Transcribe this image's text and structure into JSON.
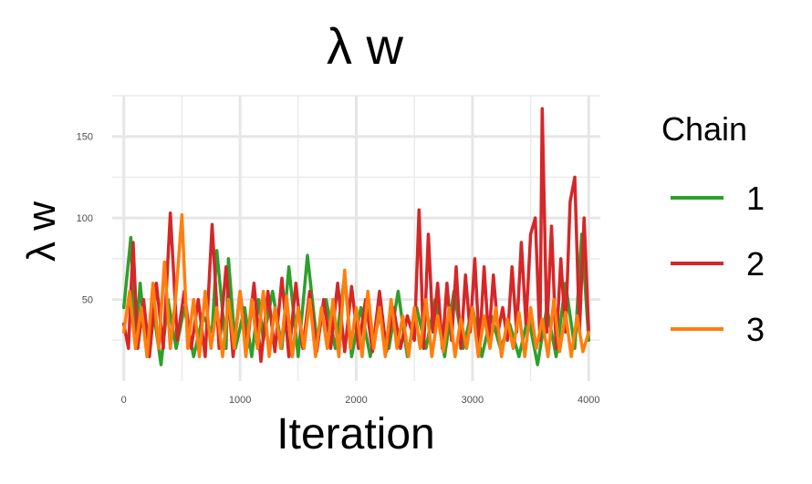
{
  "chart_data": {
    "type": "line",
    "title": "λ w",
    "xlabel": "Iteration",
    "ylabel": "λ w",
    "xlim": [
      -100,
      4100
    ],
    "ylim": [
      0,
      175
    ],
    "xticks": [
      0,
      1000,
      2000,
      3000,
      4000
    ],
    "xtick_labels": [
      "0",
      "1000",
      "2000",
      "3000",
      "4000"
    ],
    "yticks": [
      50,
      100,
      150
    ],
    "ytick_labels": [
      "50",
      "100",
      "150"
    ],
    "grid": true,
    "legend": {
      "title": "Chain",
      "position": "right",
      "entries": [
        "1",
        "2",
        "3"
      ]
    },
    "series": [
      {
        "name": "1",
        "color": "#2ca02c",
        "x": [
          0,
          60,
          100,
          140,
          200,
          260,
          320,
          380,
          450,
          520,
          600,
          680,
          760,
          800,
          880,
          900,
          960,
          1040,
          1100,
          1160,
          1200,
          1280,
          1360,
          1420,
          1500,
          1580,
          1660,
          1740,
          1820,
          1900,
          1960,
          2040,
          2120,
          2200,
          2280,
          2360,
          2440,
          2520,
          2600,
          2680,
          2760,
          2840,
          2920,
          3000,
          3080,
          3160,
          3240,
          3320,
          3400,
          3480,
          3560,
          3640,
          3720,
          3800,
          3880,
          3940,
          4000
        ],
        "y": [
          45,
          88,
          20,
          60,
          15,
          40,
          10,
          50,
          20,
          45,
          15,
          40,
          30,
          80,
          20,
          75,
          20,
          45,
          15,
          50,
          25,
          55,
          20,
          70,
          15,
          77,
          25,
          50,
          20,
          65,
          15,
          45,
          15,
          40,
          20,
          55,
          15,
          45,
          20,
          50,
          15,
          55,
          20,
          45,
          15,
          40,
          20,
          35,
          15,
          40,
          10,
          45,
          15,
          60,
          20,
          90,
          25
        ]
      },
      {
        "name": "2",
        "color": "#d62728",
        "x": [
          0,
          40,
          80,
          120,
          170,
          220,
          280,
          340,
          400,
          460,
          520,
          580,
          640,
          700,
          760,
          820,
          880,
          940,
          1000,
          1060,
          1120,
          1180,
          1240,
          1300,
          1360,
          1420,
          1480,
          1540,
          1600,
          1660,
          1720,
          1780,
          1840,
          1900,
          1960,
          2020,
          2080,
          2140,
          2200,
          2260,
          2320,
          2380,
          2440,
          2500,
          2540,
          2580,
          2620,
          2660,
          2700,
          2740,
          2780,
          2820,
          2860,
          2900,
          2940,
          2980,
          3020,
          3060,
          3100,
          3140,
          3180,
          3220,
          3260,
          3300,
          3340,
          3380,
          3420,
          3460,
          3500,
          3540,
          3580,
          3600,
          3640,
          3680,
          3720,
          3760,
          3800,
          3840,
          3880,
          3920,
          3960,
          4000
        ],
        "y": [
          35,
          20,
          85,
          20,
          50,
          15,
          60,
          20,
          103,
          25,
          55,
          20,
          50,
          15,
          96,
          20,
          70,
          15,
          55,
          20,
          60,
          12,
          55,
          18,
          63,
          15,
          60,
          20,
          55,
          18,
          50,
          20,
          60,
          18,
          58,
          20,
          50,
          18,
          55,
          18,
          45,
          20,
          40,
          25,
          105,
          20,
          90,
          30,
          60,
          20,
          60,
          25,
          70,
          20,
          65,
          30,
          75,
          20,
          70,
          25,
          65,
          30,
          45,
          25,
          70,
          30,
          85,
          35,
          90,
          100,
          25,
          167,
          30,
          95,
          20,
          75,
          30,
          110,
          125,
          30,
          100,
          30
        ]
      },
      {
        "name": "3",
        "color": "#ff7f0e",
        "x": [
          0,
          50,
          100,
          150,
          200,
          250,
          300,
          350,
          400,
          450,
          500,
          550,
          600,
          650,
          700,
          750,
          800,
          850,
          900,
          950,
          1000,
          1050,
          1100,
          1150,
          1200,
          1250,
          1300,
          1350,
          1400,
          1450,
          1500,
          1550,
          1600,
          1650,
          1700,
          1750,
          1800,
          1850,
          1900,
          1950,
          2000,
          2050,
          2100,
          2150,
          2200,
          2250,
          2300,
          2350,
          2400,
          2450,
          2500,
          2550,
          2600,
          2650,
          2700,
          2750,
          2800,
          2850,
          2900,
          2950,
          3000,
          3050,
          3100,
          3150,
          3200,
          3250,
          3300,
          3350,
          3400,
          3450,
          3500,
          3550,
          3600,
          3650,
          3700,
          3750,
          3800,
          3850,
          3900,
          3950,
          4000
        ],
        "y": [
          30,
          55,
          20,
          45,
          15,
          60,
          20,
          73,
          20,
          55,
          102,
          20,
          50,
          15,
          55,
          20,
          45,
          15,
          50,
          20,
          55,
          15,
          50,
          20,
          55,
          15,
          45,
          20,
          52,
          15,
          45,
          20,
          50,
          15,
          45,
          20,
          50,
          15,
          68,
          20,
          45,
          15,
          55,
          20,
          45,
          15,
          50,
          20,
          40,
          15,
          45,
          20,
          50,
          15,
          40,
          18,
          45,
          15,
          38,
          20,
          45,
          15,
          40,
          20,
          45,
          15,
          38,
          20,
          42,
          15,
          45,
          20,
          38,
          15,
          50,
          18,
          42,
          15,
          40,
          18,
          30
        ]
      }
    ]
  }
}
